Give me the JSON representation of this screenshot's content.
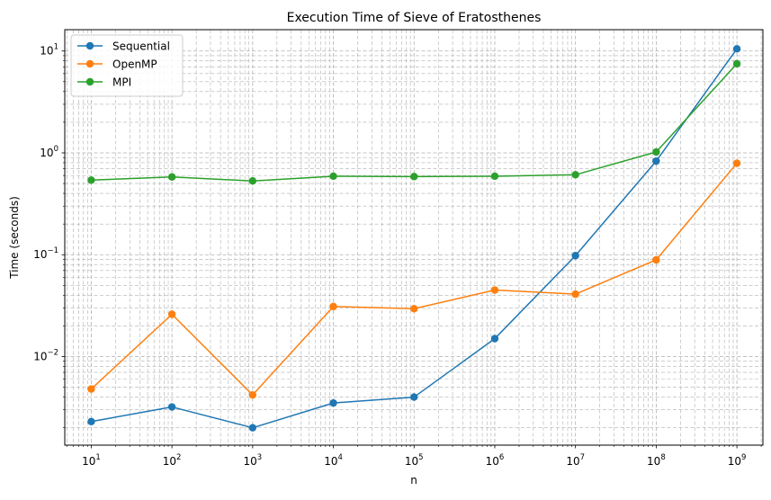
{
  "chart_data": {
    "type": "line",
    "title": "Execution Time of Sieve of Eratosthenes",
    "xlabel": "n",
    "ylabel": "Time (seconds)",
    "x_scale": "log",
    "y_scale": "log",
    "x": [
      10,
      100,
      1000,
      10000,
      100000,
      1000000,
      10000000,
      100000000,
      1000000000
    ],
    "x_tick_labels": [
      {
        "base": "10",
        "exp": "1"
      },
      {
        "base": "10",
        "exp": "2"
      },
      {
        "base": "10",
        "exp": "3"
      },
      {
        "base": "10",
        "exp": "4"
      },
      {
        "base": "10",
        "exp": "5"
      },
      {
        "base": "10",
        "exp": "6"
      },
      {
        "base": "10",
        "exp": "7"
      },
      {
        "base": "10",
        "exp": "8"
      },
      {
        "base": "10",
        "exp": "9"
      }
    ],
    "y_tick_labels": [
      {
        "value": 0.01,
        "base": "10",
        "exp": "−2"
      },
      {
        "value": 0.1,
        "base": "10",
        "exp": "−1"
      },
      {
        "value": 1,
        "base": "10",
        "exp": "0"
      },
      {
        "value": 10,
        "base": "10",
        "exp": "1"
      }
    ],
    "xlim": [
      4.7,
      2100000000
    ],
    "ylim": [
      0.00135,
      16.2
    ],
    "grid": "both (major and minor), dashed",
    "legend_position": "top-left",
    "series": [
      {
        "name": "Sequential",
        "color": "#1f77b4",
        "values": [
          0.0023,
          0.0032,
          0.002,
          0.0035,
          0.004,
          0.015,
          0.098,
          0.83,
          10.5
        ]
      },
      {
        "name": "OpenMP",
        "color": "#ff7f0e",
        "values": [
          0.0048,
          0.026,
          0.0042,
          0.031,
          0.0295,
          0.045,
          0.041,
          0.089,
          0.79
        ]
      },
      {
        "name": "MPI",
        "color": "#2ca02c",
        "values": [
          0.54,
          0.58,
          0.53,
          0.59,
          0.585,
          0.59,
          0.61,
          1.02,
          7.5
        ]
      }
    ]
  }
}
